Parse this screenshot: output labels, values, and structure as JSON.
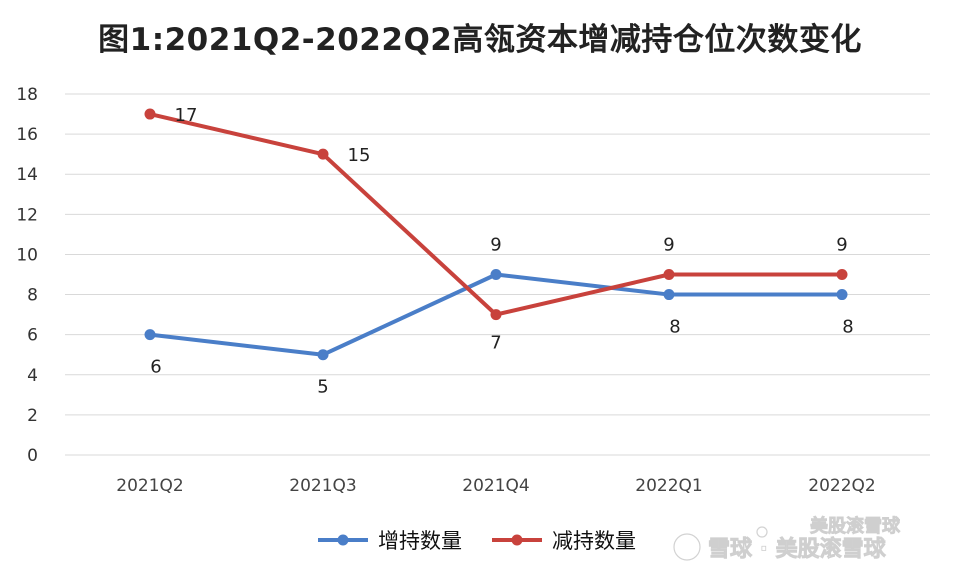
{
  "chart_data": {
    "type": "line",
    "title": "图1:2021Q2-2022Q2高瓴资本增减持仓位次数变化",
    "categories": [
      "2021Q2",
      "2021Q3",
      "2021Q4",
      "2022Q1",
      "2022Q2"
    ],
    "ylim": [
      0,
      18
    ],
    "yticks": [
      0,
      2,
      4,
      6,
      8,
      10,
      12,
      14,
      16,
      18
    ],
    "grid": true,
    "legend_position": "bottom",
    "series": [
      {
        "name": "增持数量",
        "values": [
          6,
          5,
          9,
          8,
          8
        ],
        "color": "#4a7ec8",
        "label_position": "below-except-peak"
      },
      {
        "name": "减持数量",
        "values": [
          17,
          15,
          7,
          9,
          9
        ],
        "color": "#c8423c",
        "label_position": "right-or-above"
      }
    ],
    "xlabel": "",
    "ylabel": ""
  },
  "watermark": {
    "text": "雪球 · 美股滚雪球",
    "text_top": "美股滚雪球"
  }
}
